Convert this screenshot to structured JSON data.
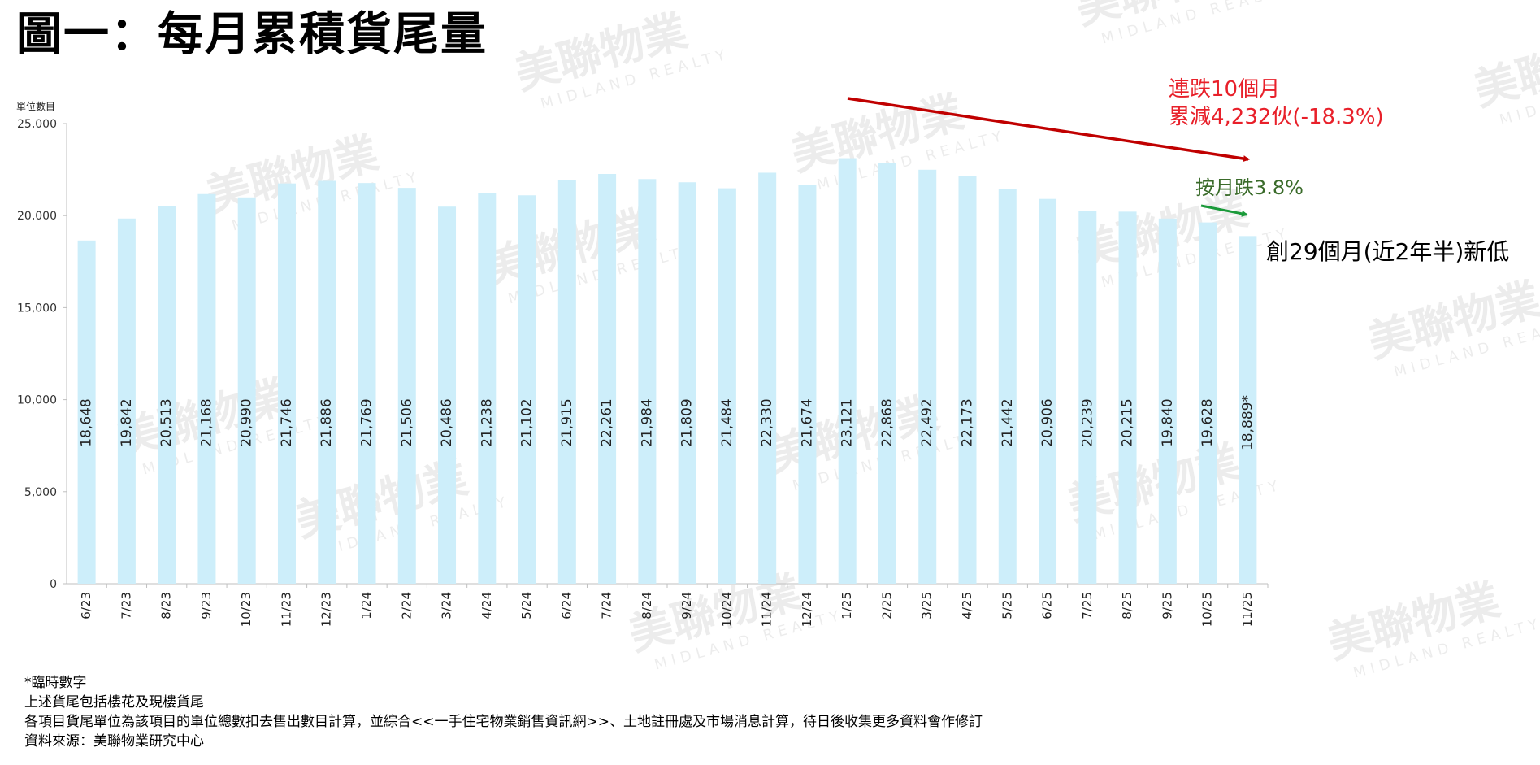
{
  "title": "圖一：每月累積貨尾量",
  "watermark": {
    "brand": "美聯物業",
    "brand_en": "MIDLAND REALTY"
  },
  "chart_data": {
    "type": "bar",
    "ylabel": "單位數目",
    "ylim": [
      0,
      25000
    ],
    "yticks": [
      0,
      5000,
      10000,
      15000,
      20000,
      25000
    ],
    "ytick_labels": [
      "0",
      "5,000",
      "10,000",
      "15,000",
      "20,000",
      "25,000"
    ],
    "grid": false,
    "bar_color": "#cdeefa",
    "categories": [
      "6/23",
      "7/23",
      "8/23",
      "9/23",
      "10/23",
      "11/23",
      "12/23",
      "1/24",
      "2/24",
      "3/24",
      "4/24",
      "5/24",
      "6/24",
      "7/24",
      "8/24",
      "9/24",
      "10/24",
      "11/24",
      "12/24",
      "1/25",
      "2/25",
      "3/25",
      "4/25",
      "5/25",
      "6/25",
      "7/25",
      "8/25",
      "9/25",
      "10/25",
      "11/25"
    ],
    "values": [
      18648,
      19842,
      20513,
      21168,
      20990,
      21746,
      21886,
      21769,
      21506,
      20486,
      21238,
      21102,
      21915,
      22261,
      21984,
      21809,
      21484,
      22330,
      21674,
      23121,
      22868,
      22492,
      22173,
      21442,
      20906,
      20239,
      20215,
      19840,
      19628,
      18889
    ],
    "data_labels": [
      "18,648",
      "19,842",
      "20,513",
      "21,168",
      "20,990",
      "21,746",
      "21,886",
      "21,769",
      "21,506",
      "20,486",
      "21,238",
      "21,102",
      "21,915",
      "22,261",
      "21,984",
      "21,809",
      "21,484",
      "22,330",
      "21,674",
      "23,121",
      "22,868",
      "22,492",
      "22,173",
      "21,442",
      "20,906",
      "20,239",
      "20,215",
      "19,840",
      "19,628",
      "18,889*"
    ],
    "annotations": [
      {
        "text": "連跌10個月",
        "color": "#e8202a"
      },
      {
        "text": "累減4,232伙(-18.3%)",
        "color": "#e8202a"
      },
      {
        "text": "按月跌3.8%",
        "color": "#3a6b2a"
      },
      {
        "text": "創29個月(近2年半)新低",
        "color": "#000000"
      }
    ],
    "arrow_colors": {
      "trend": "#c00000",
      "monthly": "#1a9a3a"
    }
  },
  "notes": [
    "*臨時數字",
    "上述貨尾包括樓花及現樓貨尾",
    "各項目貨尾單位為該項目的單位總數扣去售出數目計算，並綜合<<一手住宅物業銷售資訊網>>、土地註冊處及市場消息計算，待日後收集更多資料會作修訂",
    "資料來源：美聯物業研究中心"
  ]
}
